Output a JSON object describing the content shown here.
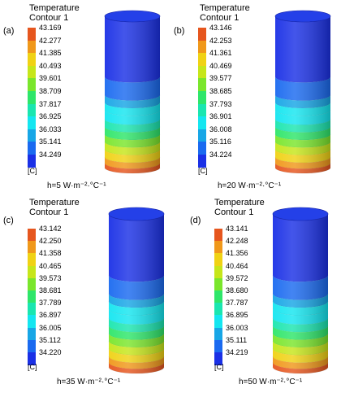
{
  "colors": [
    "#1a30e6",
    "#1a6af0",
    "#17a6e6",
    "#14e6f0",
    "#1ae6b0",
    "#2ee66a",
    "#7ae62c",
    "#c6e61a",
    "#f0d214",
    "#f0981a",
    "#e6561e"
  ],
  "panels": [
    {
      "letter": "(a)",
      "title_line1": "Temperature",
      "title_line2": "Contour 1",
      "unit": "[C]",
      "caption": "h=5 W·m⁻²·°C⁻¹",
      "ticks": [
        "43.169",
        "42.277",
        "41.385",
        "40.493",
        "39.601",
        "38.709",
        "37.817",
        "36.925",
        "36.033",
        "35.141",
        "34.249"
      ]
    },
    {
      "letter": "(b)",
      "title_line1": "Temperature",
      "title_line2": "Contour 1",
      "unit": "[C]",
      "caption": "h=20 W·m⁻²·°C⁻¹",
      "ticks": [
        "43.146",
        "42.253",
        "41.361",
        "40.469",
        "39.577",
        "38.685",
        "37.793",
        "36.901",
        "36.008",
        "35.116",
        "34.224"
      ]
    },
    {
      "letter": "(c)",
      "title_line1": "Temperature",
      "title_line2": "Contour 1",
      "unit": "[C]",
      "caption": "h=35 W·m⁻²·°C⁻¹",
      "ticks": [
        "43.142",
        "42.250",
        "41.358",
        "40.465",
        "39.573",
        "38.681",
        "37.789",
        "36.897",
        "36.005",
        "35.112",
        "34.220"
      ]
    },
    {
      "letter": "(d)",
      "title_line1": "Temperature",
      "title_line2": "Contour 1",
      "unit": "[C]",
      "caption": "h=50 W·m⁻²·°C⁻¹",
      "ticks": [
        "43.141",
        "42.248",
        "41.356",
        "40.464",
        "39.572",
        "38.680",
        "37.787",
        "36.895",
        "36.003",
        "35.111",
        "34.219"
      ]
    }
  ]
}
